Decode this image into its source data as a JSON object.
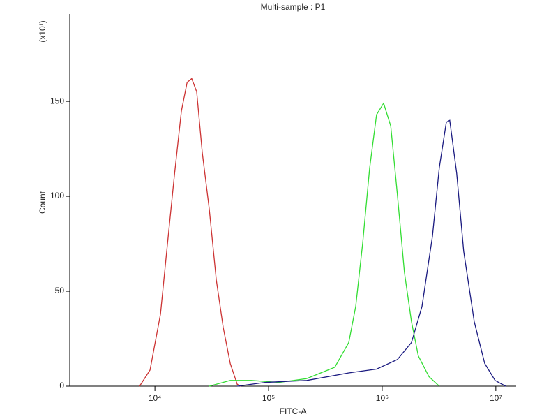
{
  "chart_data": {
    "type": "line",
    "title": "Multi-sample : P1",
    "x_label": "FITC-A",
    "y_label": "Count",
    "y_multiplier": "(x10¹)",
    "xscale": "log",
    "xlim": [
      1780,
      15100000
    ],
    "ylim": [
      0,
      196
    ],
    "xticks": [
      {
        "value": 10000,
        "label": "10⁴"
      },
      {
        "value": 100000,
        "label": "10⁵"
      },
      {
        "value": 1000000,
        "label": "10⁶"
      },
      {
        "value": 10000000,
        "label": "10⁷"
      }
    ],
    "yticks": [
      0,
      50,
      100,
      150
    ],
    "series": [
      {
        "color": "#cc3333",
        "x": [
          7330,
          9060,
          11200,
          12900,
          14900,
          17100,
          19200,
          21100,
          23300,
          26100,
          30100,
          34700,
          39900,
          46000,
          53000,
          56900
        ],
        "values": [
          0,
          8.5,
          38,
          75,
          112,
          145,
          160,
          162,
          155,
          123,
          93,
          56,
          31,
          12,
          1,
          0
        ]
      },
      {
        "color": "#33dd33",
        "x": [
          30100,
          46000,
          70300,
          124000,
          217000,
          383000,
          508000,
          585000,
          673000,
          776000,
          893000,
          1030000,
          1190000,
          1360000,
          1570000,
          1810000,
          2080000,
          2580000,
          3180000
        ],
        "values": [
          0,
          3,
          3,
          2,
          4,
          10,
          23,
          42,
          75,
          115,
          143,
          149,
          137,
          101,
          60,
          34,
          16,
          5,
          0
        ]
      },
      {
        "color": "#1a1a80",
        "x": [
          53000,
          93100,
          217000,
          508000,
          893000,
          1360000,
          1810000,
          2240000,
          2770000,
          3180000,
          3670000,
          3930000,
          4530000,
          5220000,
          6460000,
          7980000,
          9860000,
          12200000
        ],
        "values": [
          0,
          2,
          3,
          7,
          9,
          14,
          23,
          42,
          79,
          115,
          139,
          140,
          112,
          71,
          34,
          12,
          3,
          0
        ]
      }
    ]
  }
}
